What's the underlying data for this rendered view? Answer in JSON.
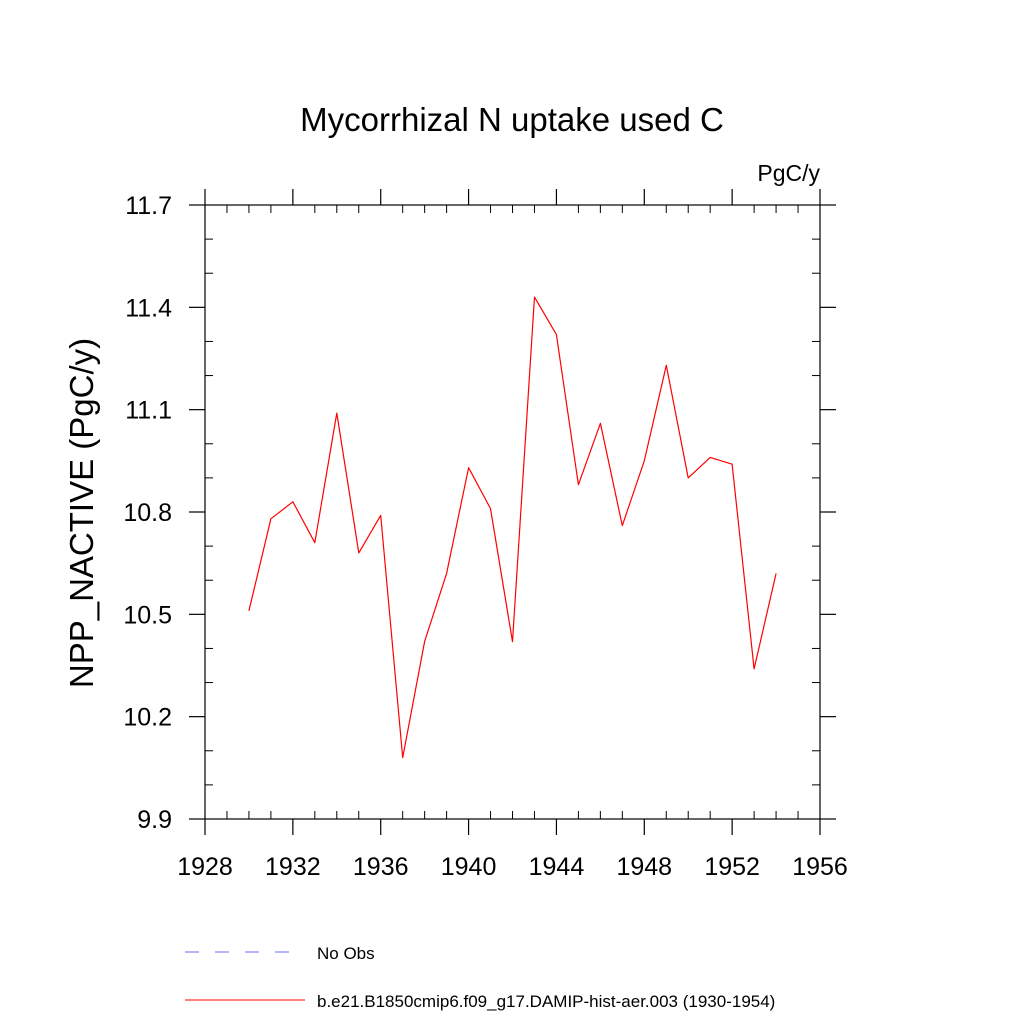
{
  "chart_data": {
    "type": "line",
    "title": "Mycorrhizal N uptake used C",
    "units_label": "PgC/y",
    "ylabel": "NPP_NACTIVE  (PgC/y)",
    "xlabel": "",
    "xlim": [
      1928,
      1956
    ],
    "ylim": [
      9.9,
      11.7
    ],
    "x_ticks": [
      1928,
      1932,
      1936,
      1940,
      1944,
      1948,
      1952,
      1956
    ],
    "x_tick_labels": [
      "1928",
      "1932",
      "1936",
      "1940",
      "1944",
      "1948",
      "1952",
      "1956"
    ],
    "x_minor_step": 1,
    "y_ticks": [
      9.9,
      10.2,
      10.5,
      10.8,
      11.1,
      11.4,
      11.7
    ],
    "y_tick_labels": [
      "9.9",
      "10.2",
      "10.5",
      "10.8",
      "11.1",
      "11.4",
      "11.7"
    ],
    "y_minor_step": 0.1,
    "grid": false,
    "legend_position": "bottom",
    "series": [
      {
        "name": "b.e21.B1850cmip6.f09_g17.DAMIP-hist-aer.003 (1930-1954)",
        "color": "#ff0000",
        "x": [
          1930,
          1931,
          1932,
          1933,
          1934,
          1935,
          1936,
          1937,
          1938,
          1939,
          1940,
          1941,
          1942,
          1943,
          1944,
          1945,
          1946,
          1947,
          1948,
          1949,
          1950,
          1951,
          1952,
          1953,
          1954
        ],
        "y": [
          10.51,
          10.78,
          10.83,
          10.71,
          11.09,
          10.68,
          10.79,
          10.08,
          10.42,
          10.62,
          10.93,
          10.81,
          10.42,
          11.43,
          11.32,
          10.88,
          11.06,
          10.76,
          10.95,
          11.23,
          10.9,
          10.96,
          10.94,
          10.34,
          10.62
        ]
      }
    ],
    "legend": [
      {
        "label": "No Obs",
        "color": "#6a6aff",
        "style": "dashed"
      },
      {
        "label": "b.e21.B1850cmip6.f09_g17.DAMIP-hist-aer.003 (1930-1954)",
        "color": "#ff0000",
        "style": "solid"
      }
    ]
  }
}
